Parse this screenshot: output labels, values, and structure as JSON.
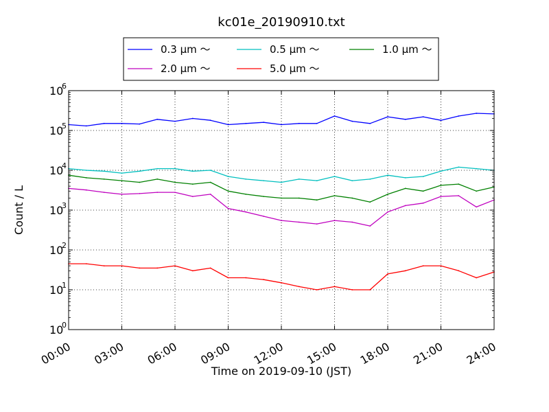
{
  "chart_data": {
    "type": "line",
    "title": "kc01e_20190910.txt",
    "xlabel": "Time on 2019-09-10 (JST)",
    "ylabel": "Count / L",
    "yscale": "log",
    "ylim": [
      1,
      1000000
    ],
    "xlim": [
      "2019-09-10 00:00",
      "2019-09-11 00:00"
    ],
    "grid": true,
    "legend_position": "top-center",
    "x_tick_labels": [
      "00:00",
      "03:00",
      "06:00",
      "09:00",
      "12:00",
      "15:00",
      "18:00",
      "21:00",
      "24:00"
    ],
    "y_tick_labels": [
      {
        "base": "10",
        "exp": "0"
      },
      {
        "base": "10",
        "exp": "1"
      },
      {
        "base": "10",
        "exp": "2"
      },
      {
        "base": "10",
        "exp": "3"
      },
      {
        "base": "10",
        "exp": "4"
      },
      {
        "base": "10",
        "exp": "5"
      },
      {
        "base": "10",
        "exp": "6"
      }
    ],
    "x": [
      "00:00",
      "01:00",
      "02:00",
      "03:00",
      "04:00",
      "05:00",
      "06:00",
      "07:00",
      "08:00",
      "09:00",
      "10:00",
      "11:00",
      "12:00",
      "13:00",
      "14:00",
      "15:00",
      "16:00",
      "17:00",
      "18:00",
      "19:00",
      "20:00",
      "21:00",
      "22:00",
      "23:00",
      "24:00"
    ],
    "series": [
      {
        "name": "0.3 μm ～",
        "color": "#0000ff",
        "values": [
          140000,
          130000,
          150000,
          150000,
          145000,
          190000,
          170000,
          200000,
          180000,
          140000,
          150000,
          160000,
          140000,
          150000,
          150000,
          230000,
          170000,
          150000,
          220000,
          190000,
          220000,
          180000,
          230000,
          270000,
          260000
        ]
      },
      {
        "name": "0.5 μm ～",
        "color": "#00bfbf",
        "values": [
          11000,
          10000,
          9500,
          8500,
          9500,
          11000,
          11000,
          9500,
          10000,
          7000,
          6000,
          5500,
          5000,
          6000,
          5500,
          7000,
          5500,
          6000,
          7500,
          6500,
          7000,
          9500,
          12000,
          11000,
          10000
        ]
      },
      {
        "name": "1.0 μm ～",
        "color": "#008000",
        "values": [
          7500,
          6500,
          6000,
          5500,
          5000,
          6000,
          5000,
          4500,
          5000,
          3000,
          2500,
          2200,
          2000,
          2000,
          1800,
          2300,
          2000,
          1600,
          2500,
          3500,
          3000,
          4200,
          4500,
          3000,
          3800
        ]
      },
      {
        "name": "2.0 μm ～",
        "color": "#bf00bf",
        "values": [
          3500,
          3200,
          2800,
          2500,
          2600,
          2800,
          2800,
          2200,
          2500,
          1100,
          900,
          700,
          550,
          500,
          450,
          550,
          500,
          400,
          900,
          1300,
          1500,
          2200,
          2300,
          1200,
          1800
        ]
      },
      {
        "name": "5.0 μm ～",
        "color": "#ff0000",
        "values": [
          45,
          45,
          40,
          40,
          35,
          35,
          40,
          30,
          35,
          20,
          20,
          18,
          15,
          12,
          10,
          12,
          10,
          10,
          25,
          30,
          40,
          40,
          30,
          20,
          28
        ]
      }
    ]
  }
}
